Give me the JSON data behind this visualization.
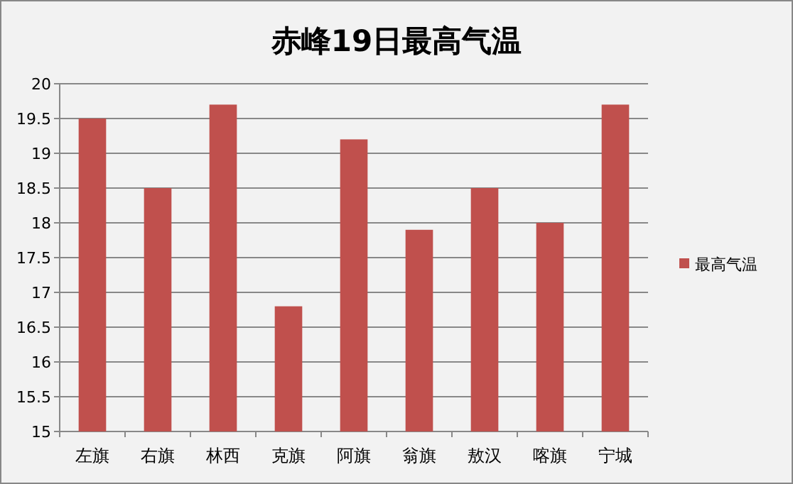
{
  "chart_data": {
    "type": "bar",
    "title": "赤峰19日最高气温",
    "categories": [
      "左旗",
      "右旗",
      "林西",
      "克旗",
      "阿旗",
      "翁旗",
      "敖汉",
      "喀旗",
      "宁城"
    ],
    "series": [
      {
        "name": "最高气温",
        "color": "#c0504d",
        "values": [
          19.5,
          18.5,
          19.7,
          16.8,
          19.2,
          17.9,
          18.5,
          18.0,
          19.7
        ]
      }
    ],
    "ylim": [
      15,
      20
    ],
    "yticks": [
      15,
      15.5,
      16,
      16.5,
      17,
      17.5,
      18,
      18.5,
      19,
      19.5,
      20
    ],
    "grid": "y",
    "legend": "right"
  }
}
